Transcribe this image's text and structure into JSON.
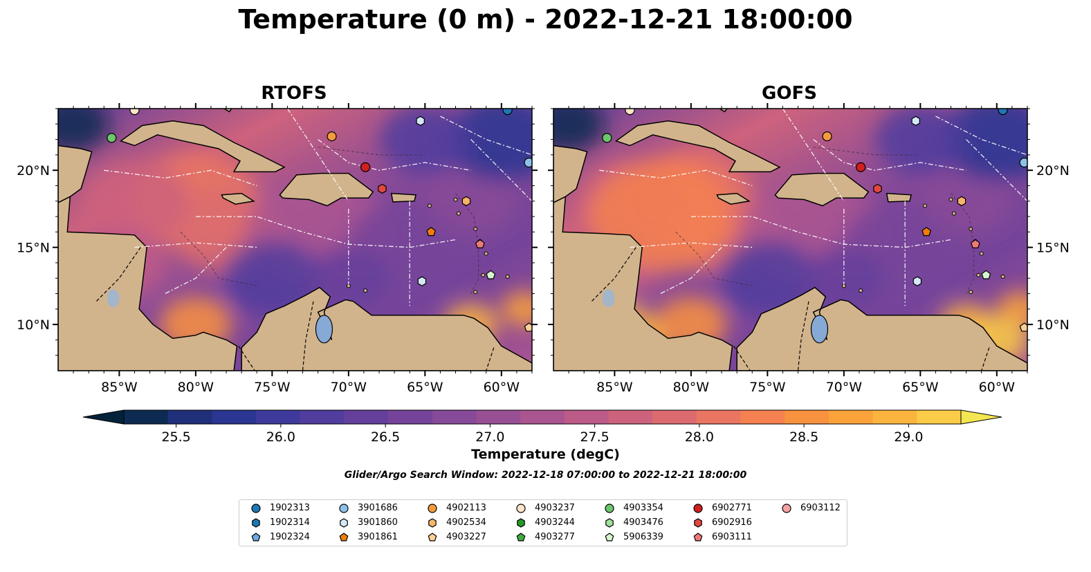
{
  "title": "Temperature (0 m) - 2022-12-21 18:00:00",
  "panels": [
    {
      "title": "RTOFS"
    },
    {
      "title": "GOFS"
    }
  ],
  "axes": {
    "lon_ticks": [
      "85°W",
      "80°W",
      "75°W",
      "70°W",
      "65°W",
      "60°W"
    ],
    "lat_ticks": [
      "20°N",
      "15°N",
      "10°N"
    ],
    "lon_range": [
      -89.0,
      -58.0
    ],
    "lat_range": [
      7.0,
      24.0
    ]
  },
  "colorbar": {
    "label": "Temperature (degC)",
    "ticks": [
      "25.5",
      "26.0",
      "26.5",
      "27.0",
      "27.5",
      "28.0",
      "28.5",
      "29.0"
    ],
    "range": [
      25.25,
      29.25
    ],
    "step": 0.25,
    "extend": "both",
    "colors": [
      "#04223a",
      "#0d2b52",
      "#1f2f7a",
      "#2b3592",
      "#3d3a9c",
      "#503d9e",
      "#643f9c",
      "#75449a",
      "#874a98",
      "#984f94",
      "#ab5590",
      "#bd5b88",
      "#cd627d",
      "#dc6b70",
      "#ea7562",
      "#f58150",
      "#f9923f",
      "#fba23b",
      "#fbb53f",
      "#fbcc47",
      "#f4e652"
    ]
  },
  "search_window": "Glider/Argo Search Window: 2022-12-18 07:00:00 to 2022-12-21 18:00:00",
  "legend": [
    {
      "id": "1902313",
      "marker": "circle",
      "color": "#1f77b4"
    },
    {
      "id": "1902314",
      "marker": "hexagon",
      "color": "#1f77b4"
    },
    {
      "id": "1902324",
      "marker": "pentagon",
      "color": "#6fa7e0"
    },
    {
      "id": "3901686",
      "marker": "circle",
      "color": "#8ec1ea"
    },
    {
      "id": "3901860",
      "marker": "hexagon",
      "color": "#d4e9f7"
    },
    {
      "id": "3901861",
      "marker": "pentagon",
      "color": "#f07d0a"
    },
    {
      "id": "4902113",
      "marker": "circle",
      "color": "#f39b3e"
    },
    {
      "id": "4902534",
      "marker": "hexagon",
      "color": "#f8b36b"
    },
    {
      "id": "4903227",
      "marker": "pentagon",
      "color": "#fbcf96"
    },
    {
      "id": "4903237",
      "marker": "circle",
      "color": "#fbe4c8"
    },
    {
      "id": "4903244",
      "marker": "hexagon",
      "color": "#229a22"
    },
    {
      "id": "4903277",
      "marker": "pentagon",
      "color": "#3ead3e"
    },
    {
      "id": "4903354",
      "marker": "circle",
      "color": "#6cc66c"
    },
    {
      "id": "4903476",
      "marker": "hexagon",
      "color": "#9fe09a"
    },
    {
      "id": "5906339",
      "marker": "pentagon",
      "color": "#d6f5cf"
    },
    {
      "id": "6902771",
      "marker": "circle",
      "color": "#cf1f1f"
    },
    {
      "id": "6902916",
      "marker": "hexagon",
      "color": "#e2473f"
    },
    {
      "id": "6903111",
      "marker": "pentagon",
      "color": "#ee7a78"
    },
    {
      "id": "6903112",
      "marker": "circle",
      "color": "#f7a3a3"
    }
  ],
  "observations": [
    {
      "id": "4903354",
      "lon": -85.5,
      "lat": 22.1
    },
    {
      "id": "4903237",
      "lon": -84.0,
      "lat": 23.9
    },
    {
      "id": "4902113",
      "lon": -71.1,
      "lat": 22.2
    },
    {
      "id": "3901860",
      "lon": -65.3,
      "lat": 23.2
    },
    {
      "id": "1902313",
      "lon": -59.6,
      "lat": 23.9
    },
    {
      "id": "6902771",
      "lon": -68.9,
      "lat": 20.2
    },
    {
      "id": "3901686",
      "lon": -58.2,
      "lat": 20.5
    },
    {
      "id": "6902916",
      "lon": -67.8,
      "lat": 18.8
    },
    {
      "id": "4902534",
      "lon": -62.3,
      "lat": 18.0
    },
    {
      "id": "3901861",
      "lon": -64.6,
      "lat": 16.0
    },
    {
      "id": "6903111",
      "lon": -61.4,
      "lat": 15.2
    },
    {
      "id": "5906339",
      "lon": -60.7,
      "lat": 13.2
    },
    {
      "id": "3901860",
      "lon": -65.2,
      "lat": 12.8
    },
    {
      "id": "4903227",
      "lon": -58.2,
      "lat": 9.8
    }
  ]
}
